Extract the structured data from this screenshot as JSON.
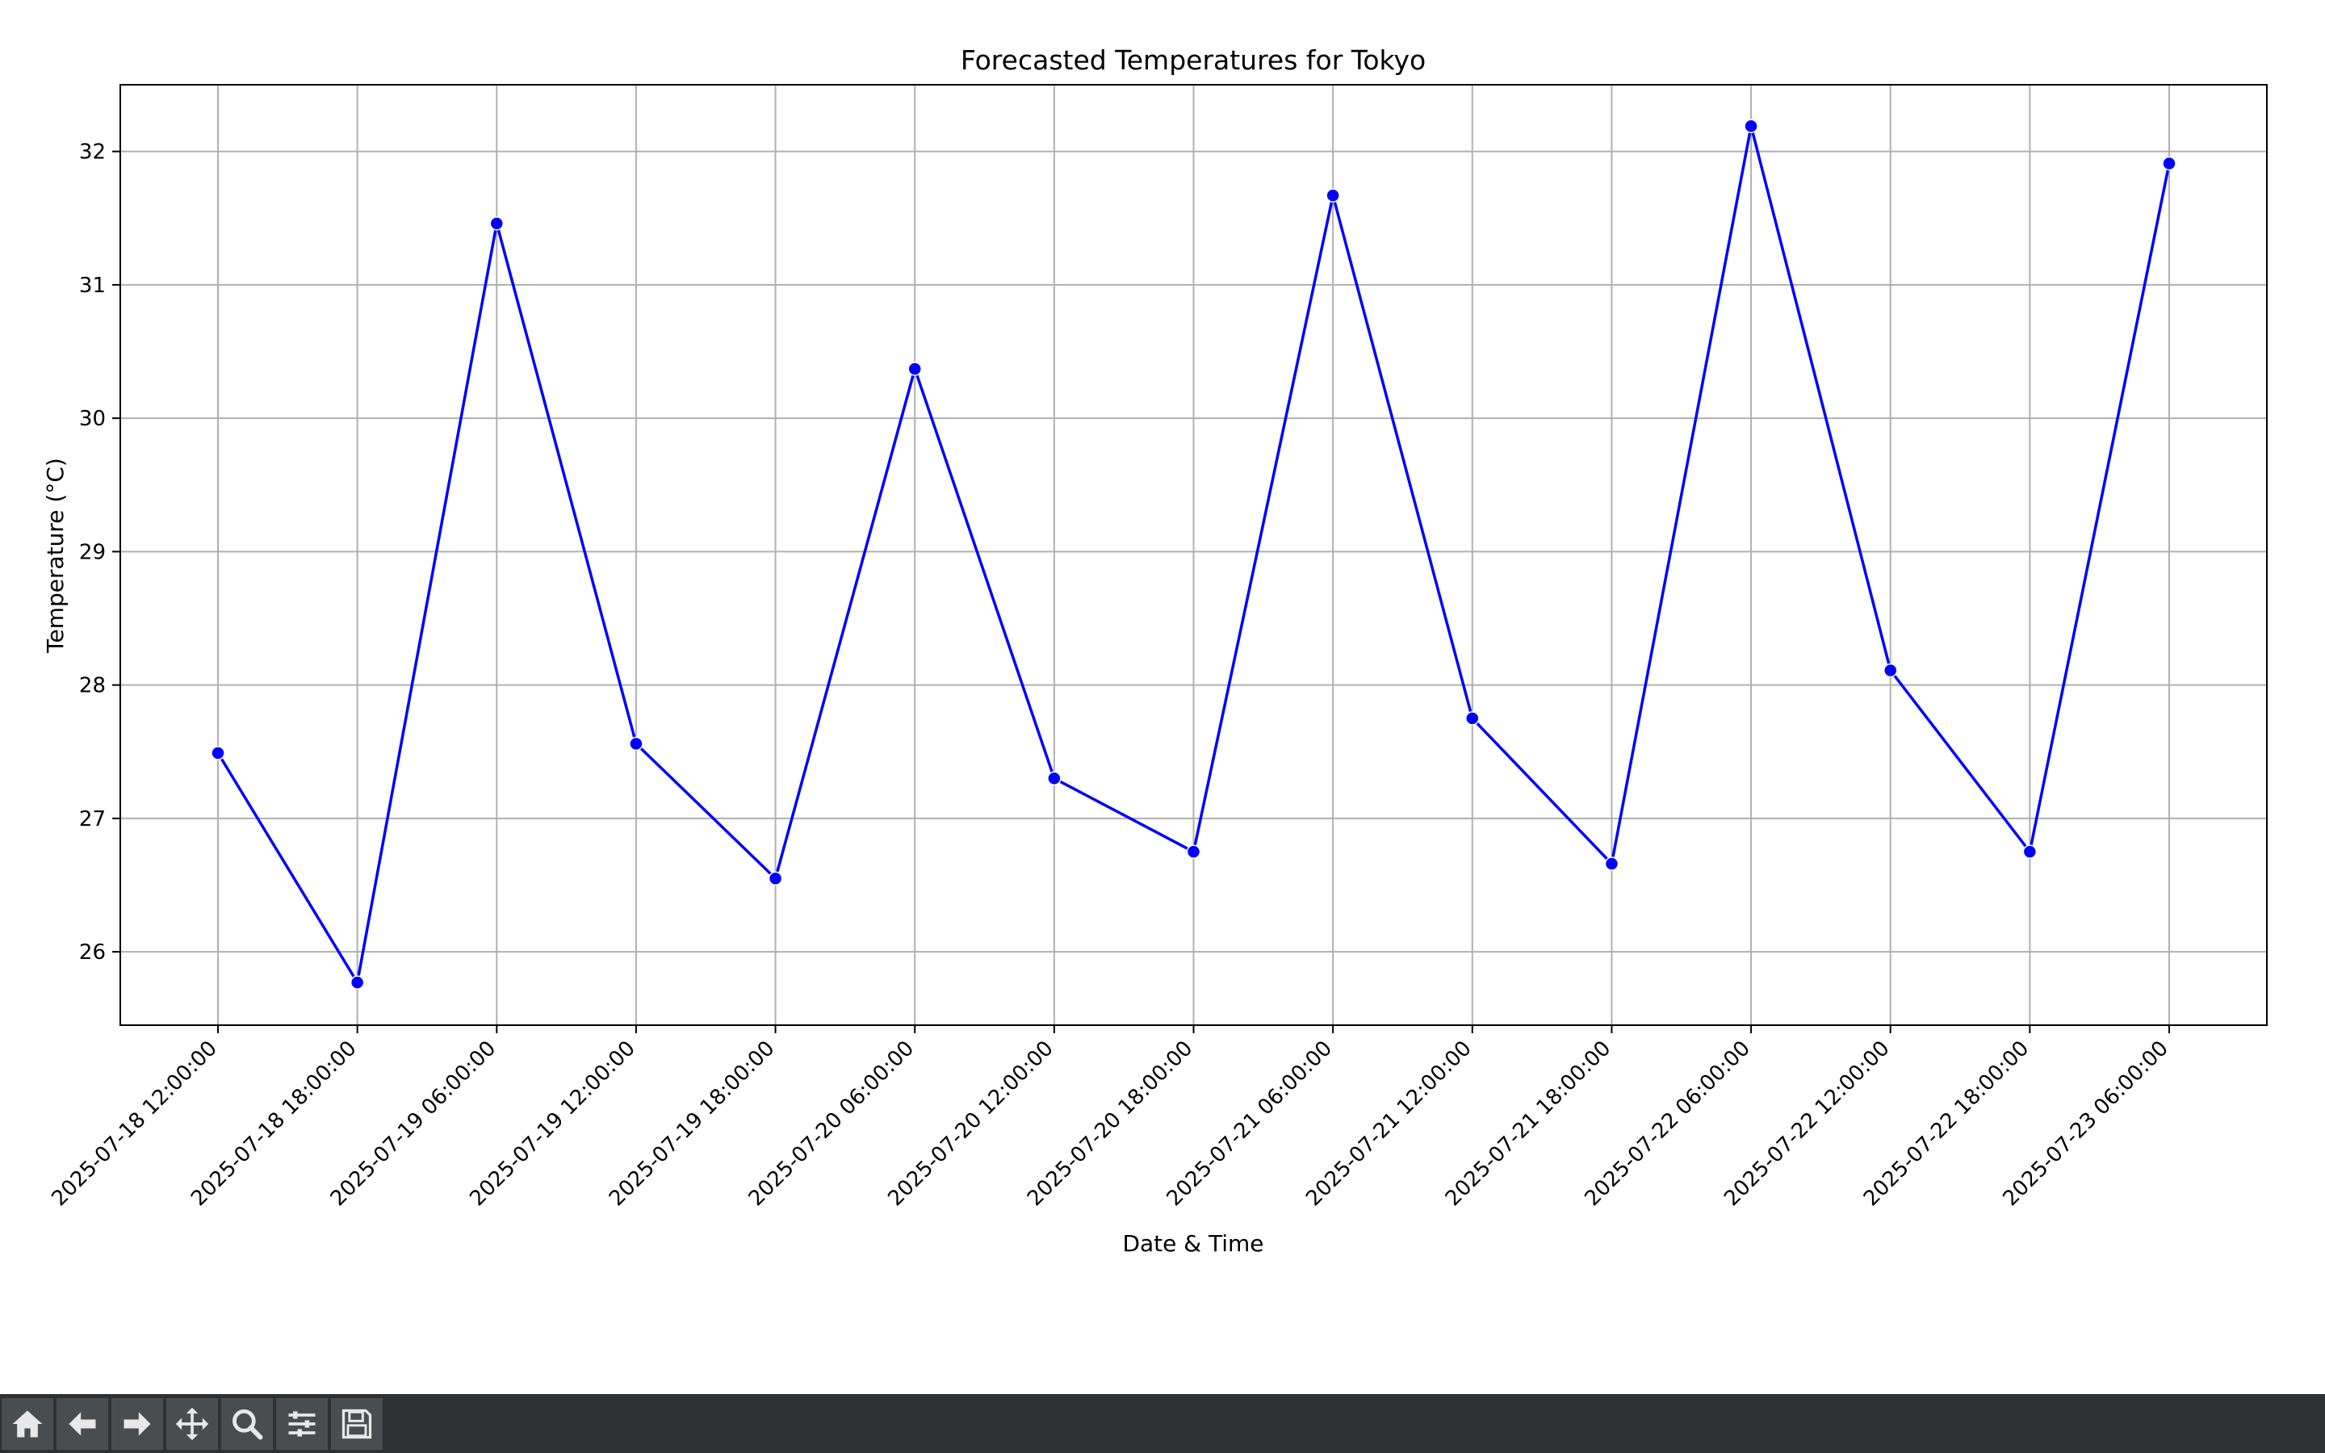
{
  "chart_data": {
    "type": "line",
    "title": "Forecasted Temperatures for Tokyo",
    "xlabel": "Date & Time",
    "ylabel": "Temperature (°C)",
    "categories": [
      "2025-07-18 12:00:00",
      "2025-07-18 18:00:00",
      "2025-07-19 06:00:00",
      "2025-07-19 12:00:00",
      "2025-07-19 18:00:00",
      "2025-07-20 06:00:00",
      "2025-07-20 12:00:00",
      "2025-07-20 18:00:00",
      "2025-07-21 06:00:00",
      "2025-07-21 12:00:00",
      "2025-07-21 18:00:00",
      "2025-07-22 06:00:00",
      "2025-07-22 12:00:00",
      "2025-07-22 18:00:00",
      "2025-07-23 06:00:00"
    ],
    "series": [
      {
        "values": [
          27.49,
          25.77,
          31.46,
          27.56,
          26.55,
          30.37,
          27.3,
          26.75,
          31.67,
          27.75,
          26.66,
          32.19,
          28.11,
          26.75,
          31.91
        ]
      }
    ],
    "yticks": [
      26,
      27,
      28,
      29,
      30,
      31,
      32
    ],
    "ylim": [
      25.45,
      32.5
    ],
    "grid": true,
    "line_color": "#0000ff",
    "marker_color": "#0000ff"
  },
  "toolbar": {
    "buttons": [
      "home-icon",
      "back-arrow-icon",
      "forward-arrow-icon",
      "pan-icon",
      "zoom-icon",
      "configure-subplots-icon",
      "save-icon"
    ]
  }
}
